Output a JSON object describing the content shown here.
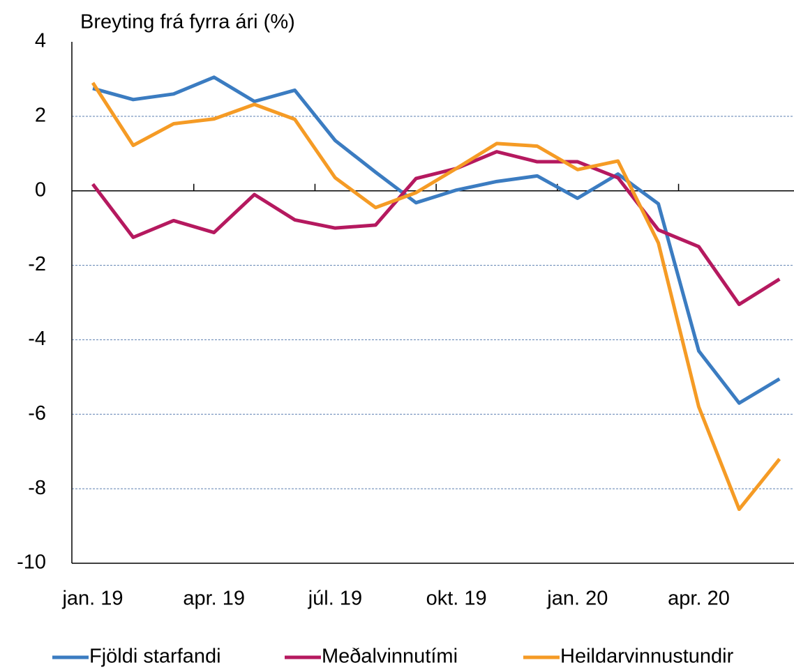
{
  "chart_data": {
    "type": "line",
    "y_label": "Breyting frá fyrra ári (%)",
    "categories": [
      "jan. 19",
      null,
      null,
      "apr. 19",
      null,
      null,
      "júl. 19",
      null,
      null,
      "okt. 19",
      null,
      null,
      "jan. 20",
      null,
      null,
      "apr. 20",
      null,
      null
    ],
    "series": [
      {
        "name": "Fjöldi starfandi",
        "color": "#3b7cc1",
        "values": [
          2.75,
          2.45,
          2.6,
          3.05,
          2.4,
          2.7,
          1.35,
          0.5,
          -0.32,
          0.02,
          0.25,
          0.4,
          -0.2,
          0.45,
          -0.35,
          -4.3,
          -5.7,
          -5.05
        ]
      },
      {
        "name": "Meðalvinnutími",
        "color": "#b5195f",
        "values": [
          0.18,
          -1.25,
          -0.8,
          -1.12,
          -0.1,
          -0.78,
          -1.0,
          -0.92,
          0.33,
          0.6,
          1.05,
          0.78,
          0.78,
          0.35,
          -1.05,
          -1.5,
          -3.05,
          -2.37
        ]
      },
      {
        "name": "Heildarvinnustundir",
        "color": "#f59b25",
        "values": [
          2.9,
          1.22,
          1.8,
          1.93,
          2.32,
          1.92,
          0.35,
          -0.45,
          -0.05,
          0.6,
          1.27,
          1.2,
          0.57,
          0.8,
          -1.4,
          -5.8,
          -8.55,
          -7.2
        ]
      }
    ],
    "ylim": [
      -10,
      4
    ],
    "yticks": [
      4,
      2,
      0,
      -2,
      -4,
      -6,
      -8,
      -10
    ],
    "grid": true
  }
}
